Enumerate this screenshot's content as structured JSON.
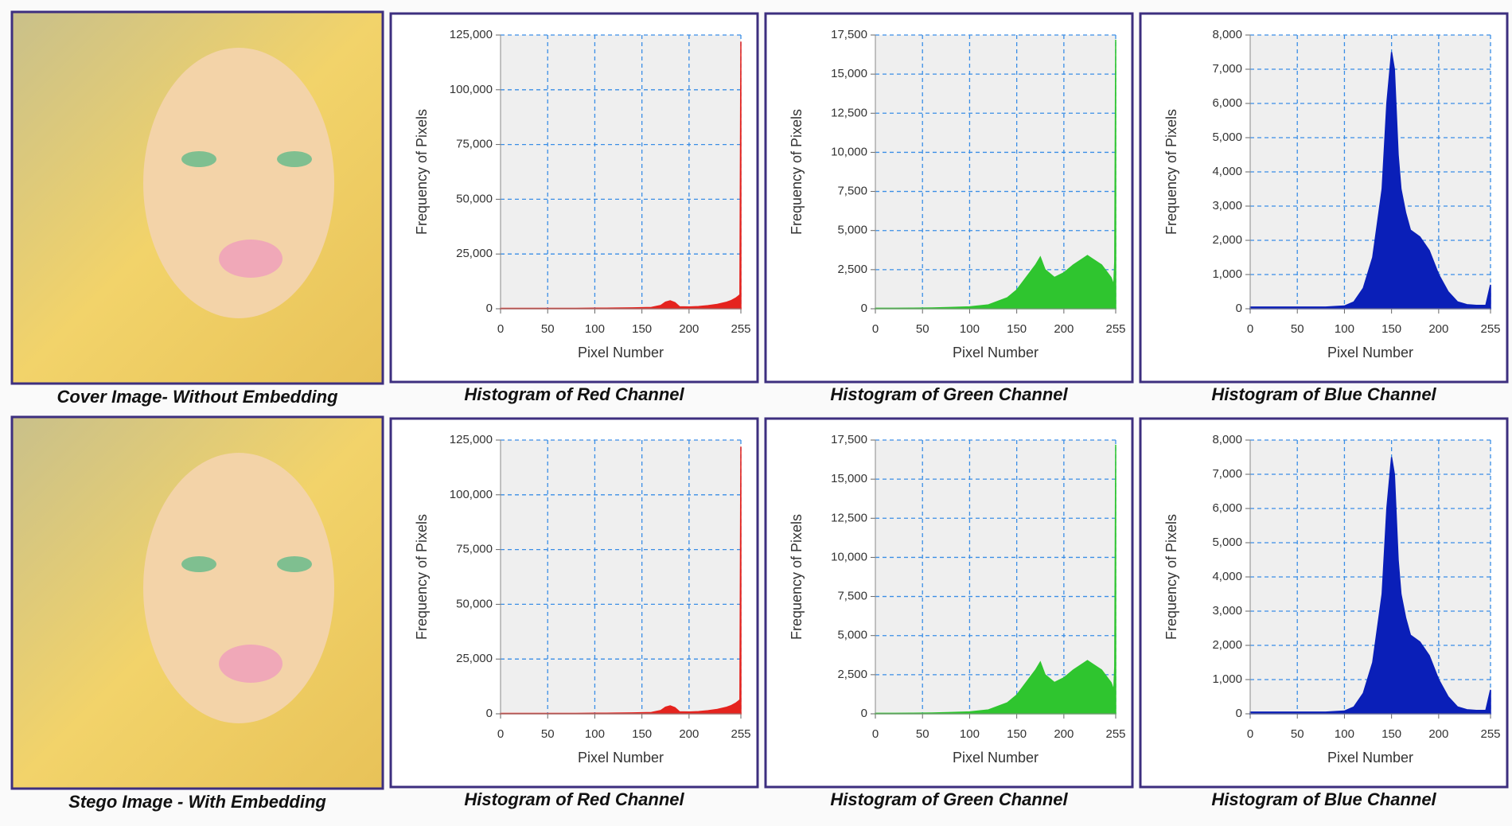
{
  "figures": [
    {
      "caption": "Cover Image- Without Embedding"
    },
    {
      "caption": "Stego Image - With Embedding"
    }
  ],
  "chart_data": [
    {
      "type": "area",
      "title": "Histogram of Red Channel",
      "xlabel": "Pixel Number",
      "ylabel": "Frequency of Pixels",
      "color": "#e5231e",
      "grid": true,
      "x": [
        0,
        20,
        40,
        60,
        80,
        100,
        120,
        140,
        160,
        170,
        175,
        180,
        185,
        190,
        200,
        210,
        220,
        230,
        240,
        245,
        250,
        253,
        254,
        255
      ],
      "values": [
        200,
        200,
        200,
        200,
        200,
        250,
        300,
        400,
        600,
        1500,
        3000,
        3600,
        2800,
        900,
        800,
        1000,
        1400,
        2000,
        3000,
        3800,
        5000,
        6000,
        6500,
        122000
      ],
      "xlim": [
        0,
        255
      ],
      "ylim": [
        0,
        125000
      ],
      "xticks": [
        0,
        50,
        100,
        150,
        200,
        255
      ],
      "yticks": [
        0,
        {
          "value": 25000,
          "label": "25,000"
        },
        {
          "value": 50000,
          "label": "50,000"
        },
        {
          "value": 75000,
          "label": "75,000"
        },
        {
          "value": 100000,
          "label": "100,000"
        },
        {
          "value": 125000,
          "label": "125,000"
        }
      ]
    },
    {
      "type": "area",
      "title": "Histogram of Green Channel",
      "xlabel": "Pixel Number",
      "ylabel": "Frequency of Pixels",
      "color": "#2fc52f",
      "grid": true,
      "x": [
        0,
        20,
        40,
        60,
        80,
        100,
        120,
        140,
        150,
        160,
        170,
        175,
        180,
        190,
        200,
        210,
        220,
        225,
        230,
        240,
        250,
        253,
        254,
        255
      ],
      "values": [
        30,
        30,
        40,
        50,
        80,
        120,
        250,
        700,
        1200,
        2000,
        2800,
        3300,
        2500,
        2000,
        2300,
        2800,
        3200,
        3400,
        3200,
        2800,
        2000,
        1500,
        3000,
        17200
      ],
      "xlim": [
        0,
        255
      ],
      "ylim": [
        0,
        17500
      ],
      "xticks": [
        0,
        50,
        100,
        150,
        200,
        255
      ],
      "yticks": [
        0,
        {
          "value": 2500,
          "label": "2,500"
        },
        {
          "value": 5000,
          "label": "5,000"
        },
        {
          "value": 7500,
          "label": "7,500"
        },
        {
          "value": 10000,
          "label": "10,000"
        },
        {
          "value": 12500,
          "label": "12,500"
        },
        {
          "value": 15000,
          "label": "15,000"
        },
        {
          "value": 17500,
          "label": "17,500"
        }
      ]
    },
    {
      "type": "area",
      "title": "Histogram of Blue Channel",
      "xlabel": "Pixel Number",
      "ylabel": "Frequency of Pixels",
      "color": "#0a1fb8",
      "grid": true,
      "x": [
        0,
        20,
        40,
        60,
        80,
        100,
        110,
        120,
        130,
        140,
        145,
        150,
        153,
        157,
        160,
        165,
        170,
        180,
        190,
        200,
        210,
        220,
        230,
        240,
        250,
        255
      ],
      "values": [
        50,
        50,
        50,
        50,
        50,
        80,
        200,
        600,
        1500,
        3500,
        6000,
        7500,
        7000,
        4500,
        3500,
        2800,
        2300,
        2100,
        1700,
        1000,
        500,
        200,
        120,
        100,
        100,
        700
      ],
      "xlim": [
        0,
        255
      ],
      "ylim": [
        0,
        8000
      ],
      "xticks": [
        0,
        50,
        100,
        150,
        200,
        255
      ],
      "yticks": [
        0,
        {
          "value": 1000,
          "label": "1,000"
        },
        {
          "value": 2000,
          "label": "2,000"
        },
        {
          "value": 3000,
          "label": "3,000"
        },
        {
          "value": 4000,
          "label": "4,000"
        },
        {
          "value": 5000,
          "label": "5,000"
        },
        {
          "value": 6000,
          "label": "6,000"
        },
        {
          "value": 7000,
          "label": "7,000"
        },
        {
          "value": 8000,
          "label": "8,000"
        }
      ]
    },
    {
      "type": "area",
      "title": "Histogram of Red Channel",
      "xlabel": "Pixel Number",
      "ylabel": "Frequency of Pixels",
      "color": "#e5231e",
      "grid": true,
      "x": [
        0,
        20,
        40,
        60,
        80,
        100,
        120,
        140,
        160,
        170,
        175,
        180,
        185,
        190,
        200,
        210,
        220,
        230,
        240,
        245,
        250,
        253,
        254,
        255
      ],
      "values": [
        200,
        200,
        200,
        200,
        200,
        250,
        300,
        400,
        600,
        1500,
        3000,
        3600,
        2800,
        900,
        800,
        1000,
        1400,
        2000,
        3000,
        3800,
        5000,
        6000,
        6500,
        122000
      ],
      "xlim": [
        0,
        255
      ],
      "ylim": [
        0,
        125000
      ],
      "xticks": [
        0,
        50,
        100,
        150,
        200,
        255
      ],
      "yticks": [
        0,
        {
          "value": 25000,
          "label": "25,000"
        },
        {
          "value": 50000,
          "label": "50,000"
        },
        {
          "value": 75000,
          "label": "75,000"
        },
        {
          "value": 100000,
          "label": "100,000"
        },
        {
          "value": 125000,
          "label": "125,000"
        }
      ]
    },
    {
      "type": "area",
      "title": "Histogram of Green Channel",
      "xlabel": "Pixel Number",
      "ylabel": "Frequency of Pixels",
      "color": "#2fc52f",
      "grid": true,
      "x": [
        0,
        20,
        40,
        60,
        80,
        100,
        120,
        140,
        150,
        160,
        170,
        175,
        180,
        190,
        200,
        210,
        220,
        225,
        230,
        240,
        250,
        253,
        254,
        255
      ],
      "values": [
        30,
        30,
        40,
        50,
        80,
        120,
        250,
        700,
        1200,
        2000,
        2800,
        3300,
        2500,
        2000,
        2300,
        2800,
        3200,
        3400,
        3200,
        2800,
        2000,
        1500,
        3000,
        17200
      ],
      "xlim": [
        0,
        255
      ],
      "ylim": [
        0,
        17500
      ],
      "xticks": [
        0,
        50,
        100,
        150,
        200,
        255
      ],
      "yticks": [
        0,
        {
          "value": 2500,
          "label": "2,500"
        },
        {
          "value": 5000,
          "label": "5,000"
        },
        {
          "value": 7500,
          "label": "7,500"
        },
        {
          "value": 10000,
          "label": "10,000"
        },
        {
          "value": 12500,
          "label": "12,500"
        },
        {
          "value": 15000,
          "label": "15,000"
        },
        {
          "value": 17500,
          "label": "17,500"
        }
      ]
    },
    {
      "type": "area",
      "title": "Histogram of Blue Channel",
      "xlabel": "Pixel Number",
      "ylabel": "Frequency of Pixels",
      "color": "#0a1fb8",
      "grid": true,
      "x": [
        0,
        20,
        40,
        60,
        80,
        100,
        110,
        120,
        130,
        140,
        145,
        150,
        153,
        157,
        160,
        165,
        170,
        180,
        190,
        200,
        210,
        220,
        230,
        240,
        250,
        255
      ],
      "values": [
        50,
        50,
        50,
        50,
        50,
        80,
        200,
        600,
        1500,
        3500,
        6000,
        7500,
        7000,
        4500,
        3500,
        2800,
        2300,
        2100,
        1700,
        1000,
        500,
        200,
        120,
        100,
        100,
        700
      ],
      "xlim": [
        0,
        255
      ],
      "ylim": [
        0,
        8000
      ],
      "xticks": [
        0,
        50,
        100,
        150,
        200,
        255
      ],
      "yticks": [
        0,
        {
          "value": 1000,
          "label": "1,000"
        },
        {
          "value": 2000,
          "label": "2,000"
        },
        {
          "value": 3000,
          "label": "3,000"
        },
        {
          "value": 4000,
          "label": "4,000"
        },
        {
          "value": 5000,
          "label": "5,000"
        },
        {
          "value": 6000,
          "label": "6,000"
        },
        {
          "value": 7000,
          "label": "7,000"
        },
        {
          "value": 8000,
          "label": "8,000"
        }
      ]
    }
  ]
}
